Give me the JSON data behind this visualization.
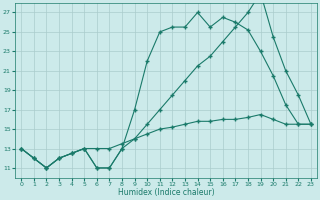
{
  "xlabel": "Humidex (Indice chaleur)",
  "bg_color": "#cceaea",
  "grid_color": "#aacccc",
  "line_color": "#1a7a6a",
  "xlim": [
    -0.5,
    23.5
  ],
  "ylim": [
    10.0,
    28.0
  ],
  "yticks": [
    11,
    13,
    15,
    17,
    19,
    21,
    23,
    25,
    27
  ],
  "xticks": [
    0,
    1,
    2,
    3,
    4,
    5,
    6,
    7,
    8,
    9,
    10,
    11,
    12,
    13,
    14,
    15,
    16,
    17,
    18,
    19,
    20,
    21,
    22,
    23
  ],
  "line1_x": [
    0,
    1,
    2,
    3,
    4,
    5,
    6,
    7,
    8,
    9,
    10,
    11,
    12,
    13,
    14,
    15,
    16,
    17,
    18,
    19,
    20,
    21,
    22,
    23
  ],
  "line1_y": [
    13,
    12,
    11,
    12,
    12.5,
    13,
    11,
    11,
    13,
    17,
    22,
    25,
    25.5,
    25.5,
    27,
    25.5,
    26.5,
    26,
    25.2,
    23,
    20.5,
    17.5,
    15.5,
    15.5
  ],
  "line2_x": [
    0,
    1,
    2,
    3,
    4,
    5,
    6,
    7,
    8,
    9,
    10,
    11,
    12,
    13,
    14,
    15,
    16,
    17,
    18,
    19,
    20,
    21,
    22,
    23
  ],
  "line2_y": [
    13,
    12,
    11,
    12,
    12.5,
    13,
    13,
    13,
    13.5,
    14,
    14.5,
    15,
    15.2,
    15.5,
    15.8,
    15.8,
    16.0,
    16.0,
    16.2,
    16.5,
    16.0,
    15.5,
    15.5,
    15.5
  ],
  "line3_x": [
    0,
    1,
    2,
    3,
    4,
    5,
    6,
    7,
    8,
    9,
    10,
    11,
    12,
    13,
    14,
    15,
    16,
    17,
    18,
    19,
    20,
    21,
    22,
    23
  ],
  "line3_y": [
    13,
    12,
    11,
    12,
    12.5,
    13,
    11,
    11,
    13,
    14,
    15.5,
    17,
    18.5,
    20,
    21.5,
    22.5,
    24.0,
    25.5,
    27.0,
    29.0,
    24.5,
    21.0,
    18.5,
    15.5
  ]
}
